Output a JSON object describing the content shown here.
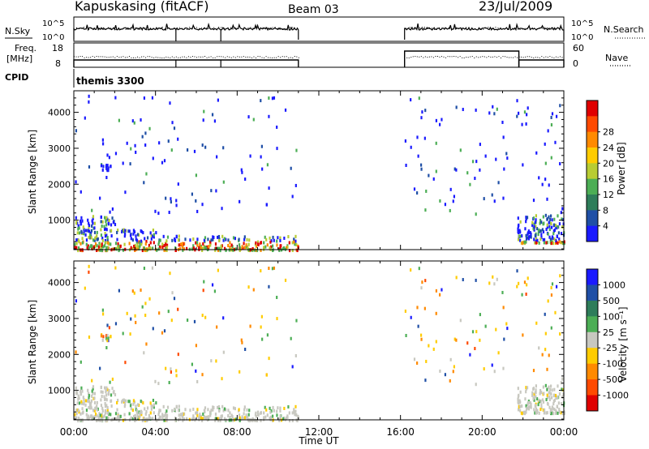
{
  "header": {
    "station": "Kapuskasing (fitACF)",
    "beam": "Beam 03",
    "date": "23/Jul/2009"
  },
  "panels": {
    "nsky": {
      "left_label": "N.Sky",
      "left_ticks": [
        "10^5",
        "10^0"
      ],
      "right_ticks": [
        "10^5",
        "10^0"
      ],
      "right_label": "N.Search"
    },
    "freq": {
      "left_label_1": "Freq.",
      "left_label_2": "[MHz]",
      "left_ticks": [
        "18",
        "8"
      ],
      "right_ticks": [
        "60",
        "0"
      ],
      "right_label": "Nave"
    },
    "cpid": {
      "label": "CPID",
      "program": "themis 3300"
    }
  },
  "time_axis": {
    "label": "Time UT",
    "ticks": [
      "00:00",
      "04:00",
      "08:00",
      "12:00",
      "16:00",
      "20:00",
      "00:00"
    ]
  },
  "colors": {
    "power": [
      "#1a1aff",
      "#1f4fa6",
      "#2e7d5a",
      "#4cae55",
      "#b8cc33",
      "#ffcc00",
      "#ff8a00",
      "#ff4a00",
      "#e00000"
    ],
    "velocity": [
      "#1a1aff",
      "#1f4fa6",
      "#2e7d5a",
      "#4cae55",
      "#c8c8c0",
      "#ffcc00",
      "#ff8a00",
      "#ff4a00",
      "#e00000"
    ]
  },
  "chart_data": [
    {
      "type": "heatmap",
      "name": "power",
      "xlabel": "Time UT",
      "ylabel": "Slant Range [km]",
      "x_ticks": [
        "00:00",
        "04:00",
        "08:00",
        "12:00",
        "16:00",
        "20:00",
        "00:00"
      ],
      "y_ticks": [
        "1000",
        "2000",
        "3000",
        "4000"
      ],
      "xlim_hours": [
        0,
        24
      ],
      "ylim_km": [
        180,
        4600
      ],
      "colorbar_label": "Power [dB]",
      "colorbar_ticks": [
        "4",
        "8",
        "12",
        "16",
        "20",
        "24",
        "28"
      ],
      "data_gaps_hours": [
        [
          11.0,
          16.2
        ]
      ],
      "dense_scatter_regions": [
        {
          "t_hours": [
            0.0,
            2.0
          ],
          "range_km": [
            200,
            1150
          ]
        },
        {
          "t_hours": [
            2.0,
            4.0
          ],
          "range_km": [
            200,
            800
          ]
        },
        {
          "t_hours": [
            4.0,
            11.0
          ],
          "range_km": [
            200,
            600
          ]
        },
        {
          "t_hours": [
            21.7,
            24.0
          ],
          "range_km": [
            400,
            1200
          ]
        }
      ]
    },
    {
      "type": "heatmap",
      "name": "velocity",
      "xlabel": "Time UT",
      "ylabel": "Slant Range [km]",
      "x_ticks": [
        "00:00",
        "04:00",
        "08:00",
        "12:00",
        "16:00",
        "20:00",
        "00:00"
      ],
      "y_ticks": [
        "1000",
        "2000",
        "3000",
        "4000"
      ],
      "xlim_hours": [
        0,
        24
      ],
      "ylim_km": [
        180,
        4600
      ],
      "colorbar_label": "Velocity [m s⁻¹]",
      "colorbar_ticks": [
        "1000",
        "500",
        "100",
        "25",
        "-25",
        "-100",
        "-500",
        "-1000"
      ],
      "data_gaps_hours": [
        [
          11.0,
          16.2
        ]
      ]
    }
  ]
}
